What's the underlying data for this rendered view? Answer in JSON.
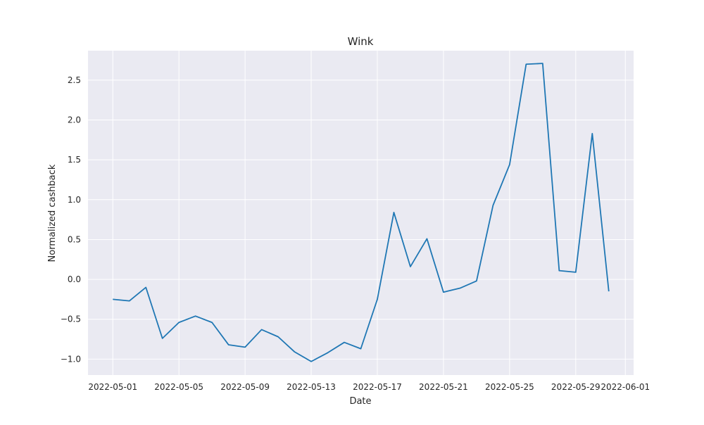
{
  "chart_data": {
    "type": "line",
    "title": "Wink",
    "xlabel": "Date",
    "ylabel": "Normalized cashback",
    "x_tick_labels": [
      "2022-05-01",
      "2022-05-05",
      "2022-05-09",
      "2022-05-13",
      "2022-05-17",
      "2022-05-21",
      "2022-05-25",
      "2022-05-29",
      "2022-06-01"
    ],
    "y_tick_labels": [
      "−1.0",
      "−0.5",
      "0.0",
      "0.5",
      "1.0",
      "1.5",
      "2.0",
      "2.5"
    ],
    "y_ticks": [
      -1.0,
      -0.5,
      0.0,
      0.5,
      1.0,
      1.5,
      2.0,
      2.5
    ],
    "xlim": [
      "2022-04-29T12:00",
      "2022-06-01T12:00"
    ],
    "ylim": [
      -1.2,
      2.87
    ],
    "grid": true,
    "line_color": "#1f77b4",
    "background_color": "#eaeaf2",
    "series": [
      {
        "x": [
          "2022-05-01",
          "2022-05-02",
          "2022-05-03",
          "2022-05-04",
          "2022-05-05",
          "2022-05-06",
          "2022-05-07",
          "2022-05-08",
          "2022-05-09",
          "2022-05-10",
          "2022-05-11",
          "2022-05-12",
          "2022-05-13",
          "2022-05-14",
          "2022-05-15",
          "2022-05-16",
          "2022-05-17",
          "2022-05-18",
          "2022-05-19",
          "2022-05-20",
          "2022-05-21",
          "2022-05-22",
          "2022-05-23",
          "2022-05-24",
          "2022-05-25",
          "2022-05-26",
          "2022-05-27",
          "2022-05-28",
          "2022-05-29",
          "2022-05-30",
          "2022-05-31"
        ],
        "values": [
          -0.25,
          -0.27,
          -0.1,
          -0.74,
          -0.54,
          -0.46,
          -0.54,
          -0.82,
          -0.85,
          -0.63,
          -0.72,
          -0.91,
          -1.03,
          -0.92,
          -0.79,
          -0.87,
          -0.25,
          0.84,
          0.16,
          0.51,
          -0.16,
          -0.11,
          -0.02,
          0.93,
          1.44,
          2.7,
          2.71,
          0.11,
          0.09,
          1.83,
          -0.15
        ]
      }
    ]
  }
}
